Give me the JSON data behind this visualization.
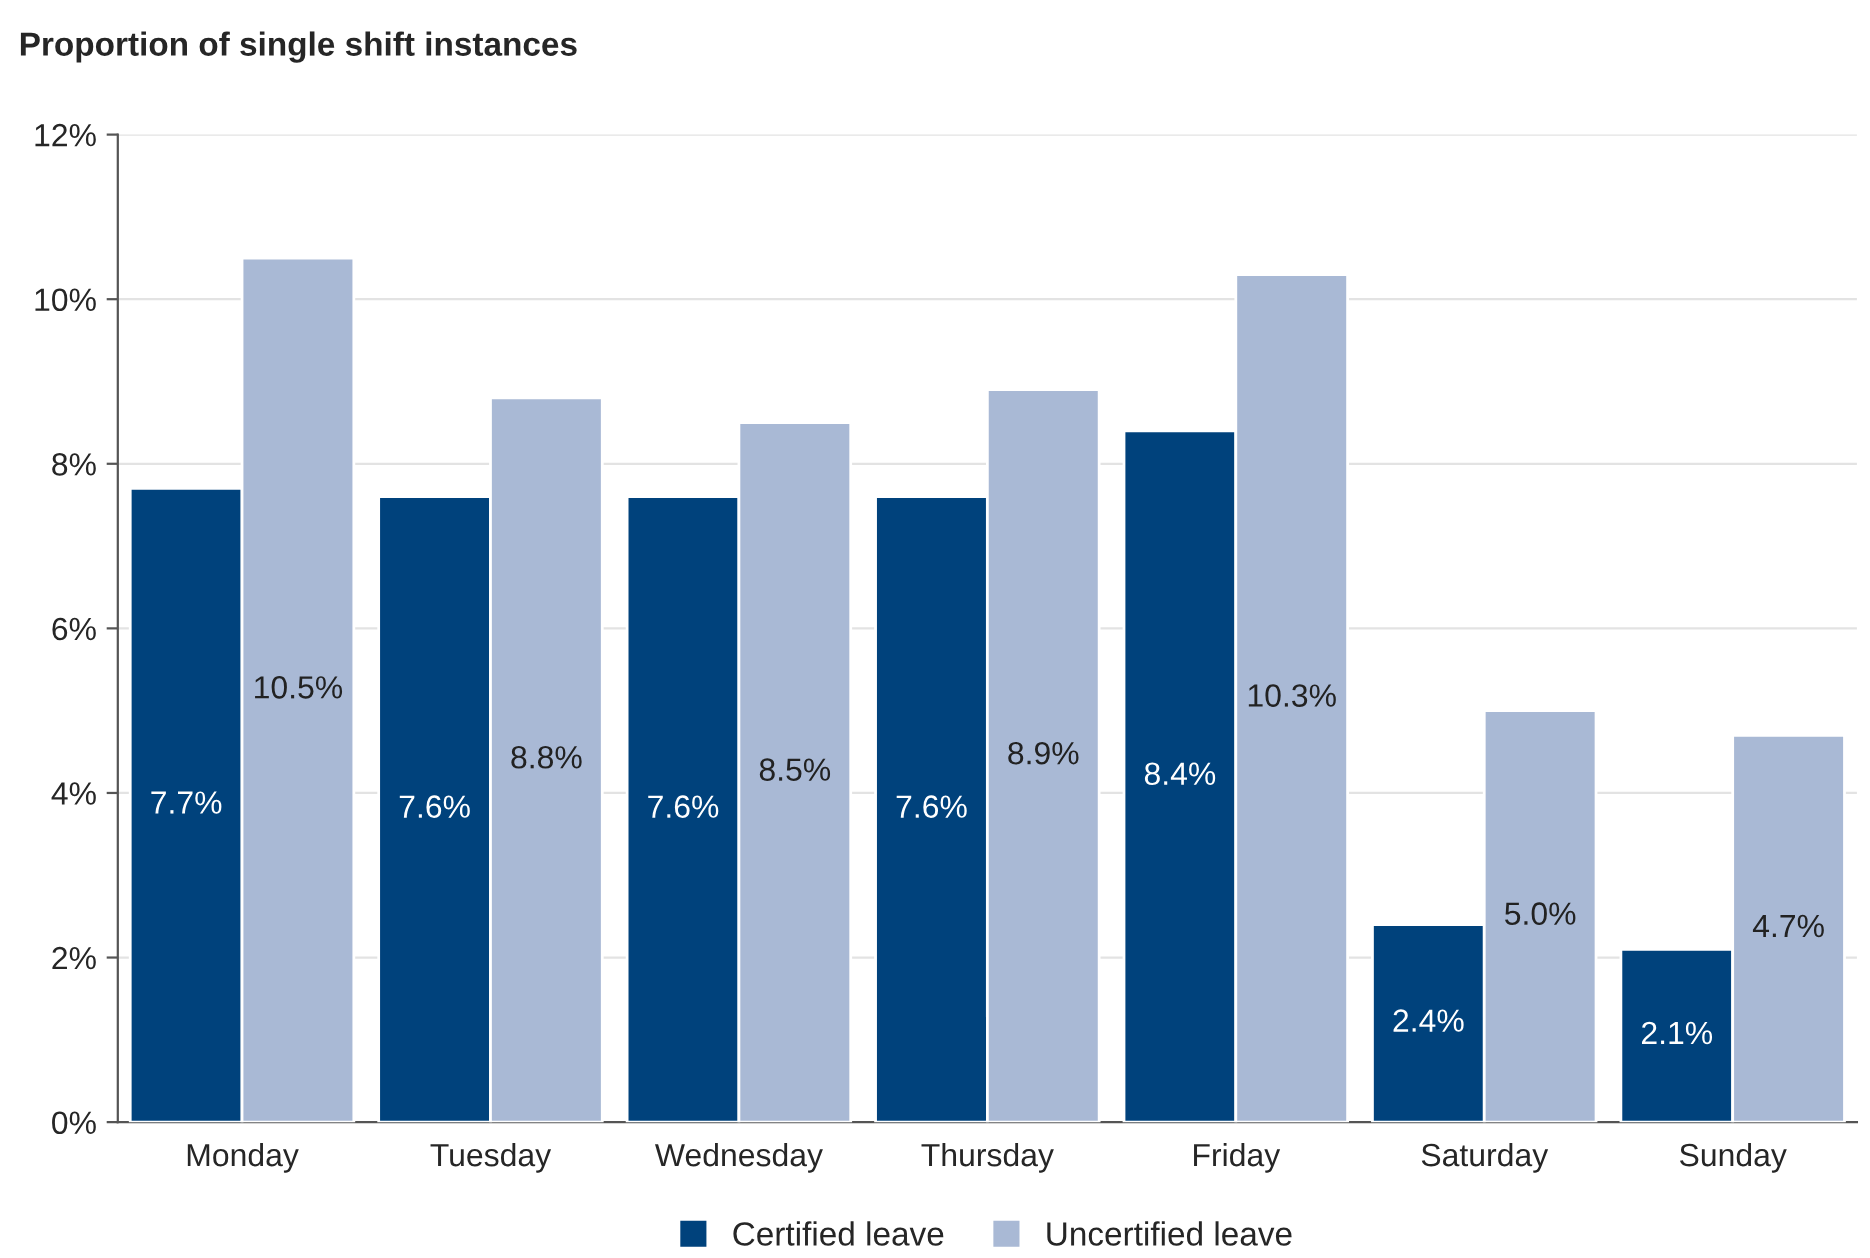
{
  "chart_data": {
    "type": "bar",
    "title": "Proportion of single shift instances",
    "categories": [
      "Monday",
      "Tuesday",
      "Wednesday",
      "Thursday",
      "Friday",
      "Saturday",
      "Sunday"
    ],
    "series": [
      {
        "name": "Certified leave",
        "color": "#00427c",
        "values": [
          7.7,
          7.6,
          7.6,
          7.6,
          8.4,
          2.4,
          2.1
        ],
        "value_labels": [
          "7.7%",
          "7.6%",
          "7.6%",
          "7.6%",
          "8.4%",
          "2.4%",
          "2.1%"
        ]
      },
      {
        "name": "Uncertified leave",
        "color": "#a9b9d5",
        "values": [
          10.5,
          8.8,
          8.5,
          8.9,
          10.3,
          5.0,
          4.7
        ],
        "value_labels": [
          "10.5%",
          "8.8%",
          "8.5%",
          "8.9%",
          "10.3%",
          "5.0%",
          "4.7%"
        ]
      }
    ],
    "ylim": [
      0,
      12
    ],
    "yticks": [
      {
        "value": 0,
        "label": "0%"
      },
      {
        "value": 2,
        "label": "2%"
      },
      {
        "value": 4,
        "label": "4%"
      },
      {
        "value": 6,
        "label": "6%"
      },
      {
        "value": 8,
        "label": "8%"
      },
      {
        "value": 10,
        "label": "10%"
      },
      {
        "value": 12,
        "label": "12%"
      }
    ],
    "grid": "y",
    "legend": "bottom"
  }
}
